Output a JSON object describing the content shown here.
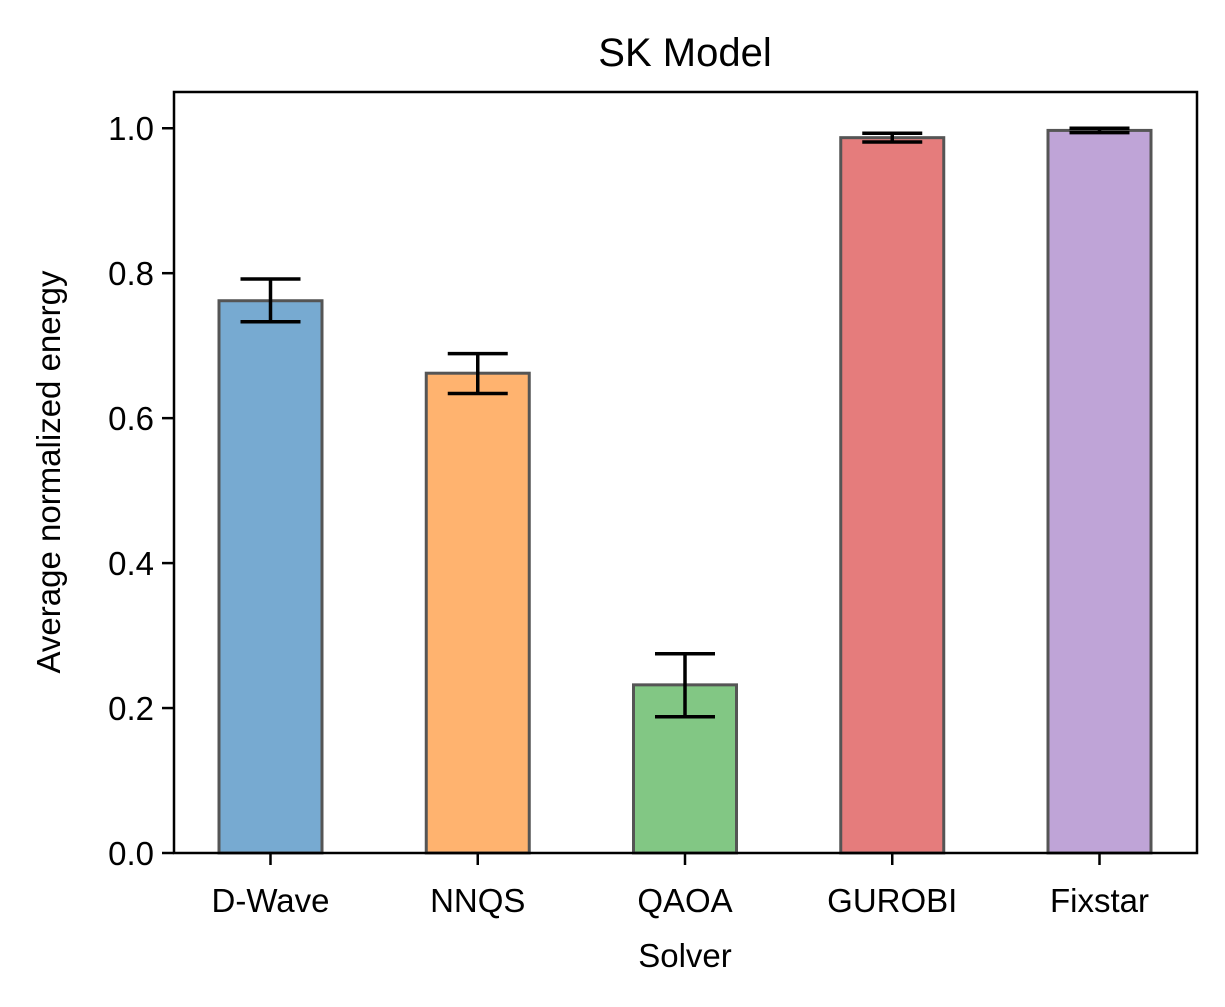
{
  "chart_data": {
    "type": "bar",
    "title": "SK Model",
    "xlabel": "Solver",
    "ylabel": "Average normalized energy",
    "categories": [
      "D-Wave",
      "NNQS",
      "QAOA",
      "GUROBI",
      "Fixstar"
    ],
    "values": [
      0.762,
      0.662,
      0.232,
      0.987,
      0.997
    ],
    "error_low": [
      0.733,
      0.634,
      0.188,
      0.981,
      0.994
    ],
    "error_high": [
      0.792,
      0.689,
      0.275,
      0.993,
      1.0
    ],
    "colors": [
      "#77aad1",
      "#ffb36f",
      "#82c784",
      "#e57c7c",
      "#bfa4d7"
    ],
    "edge_color": "#555555",
    "ylim": [
      0,
      1.05
    ],
    "yticks": [
      0.0,
      0.2,
      0.4,
      0.6,
      0.8,
      1.0
    ],
    "ytick_labels": [
      "0.0",
      "0.2",
      "0.4",
      "0.6",
      "0.8",
      "1.0"
    ],
    "grid": false,
    "legend": false
  }
}
